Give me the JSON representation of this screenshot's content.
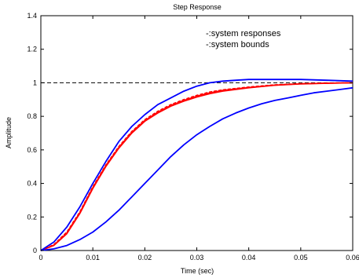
{
  "chart_data": {
    "type": "line",
    "title": "Step Response",
    "xlabel": "Time (sec)",
    "ylabel": "Amplitude",
    "xlim": [
      0,
      0.06
    ],
    "ylim": [
      0,
      1.4
    ],
    "xticks": [
      0,
      0.01,
      0.02,
      0.03,
      0.04,
      0.05,
      0.06
    ],
    "xtick_labels": [
      "0",
      "0.01",
      "0.02",
      "0.03",
      "0.04",
      "0.05",
      "0.06"
    ],
    "yticks": [
      0,
      0.2,
      0.4,
      0.6,
      0.8,
      1.0,
      1.2,
      1.4
    ],
    "ytick_labels": [
      "0",
      "0.2",
      "0.4",
      "0.6",
      "0.8",
      "1",
      "1.2",
      "1.4"
    ],
    "grid": false,
    "legend": {
      "placement": "top-right",
      "entries": [
        "-:system responses",
        "-:system bounds"
      ]
    },
    "reference_line": {
      "y": 1.0,
      "style": "dashed",
      "color": "#000000"
    },
    "series": [
      {
        "color": "#ff0000",
        "style": "solid",
        "x": [
          0,
          0.0025,
          0.005,
          0.0075,
          0.01,
          0.0125,
          0.015,
          0.0175,
          0.02,
          0.0225,
          0.025,
          0.0275,
          0.03,
          0.0325,
          0.035,
          0.04,
          0.045,
          0.05,
          0.055,
          0.06
        ],
        "y": [
          0,
          0.03,
          0.1,
          0.22,
          0.37,
          0.5,
          0.61,
          0.7,
          0.77,
          0.82,
          0.86,
          0.89,
          0.915,
          0.935,
          0.95,
          0.97,
          0.985,
          0.993,
          0.997,
          1.0
        ]
      },
      {
        "color": "#ff0000",
        "style": "dashed",
        "x": [
          0,
          0.0025,
          0.005,
          0.0075,
          0.01,
          0.0125,
          0.015,
          0.0175,
          0.02,
          0.0225,
          0.025,
          0.0275,
          0.03,
          0.0325,
          0.035,
          0.04,
          0.045,
          0.05,
          0.055,
          0.06
        ],
        "y": [
          0,
          0.035,
          0.11,
          0.23,
          0.38,
          0.51,
          0.62,
          0.71,
          0.78,
          0.83,
          0.87,
          0.9,
          0.925,
          0.945,
          0.958,
          0.975,
          0.988,
          0.995,
          0.998,
          1.0
        ]
      },
      {
        "color": "#ff0000",
        "style": "solid",
        "x": [
          0,
          0.0025,
          0.005,
          0.0075,
          0.01,
          0.0125,
          0.015,
          0.0175,
          0.02,
          0.0225,
          0.025,
          0.0275,
          0.03,
          0.0325,
          0.035,
          0.04,
          0.045,
          0.05,
          0.055,
          0.06
        ],
        "y": [
          0,
          0.032,
          0.105,
          0.225,
          0.375,
          0.505,
          0.615,
          0.705,
          0.775,
          0.825,
          0.865,
          0.895,
          0.92,
          0.94,
          0.955,
          0.972,
          0.986,
          0.994,
          0.998,
          1.0
        ]
      },
      {
        "color": "#0000ff",
        "style": "solid",
        "x": [
          0,
          0.0025,
          0.005,
          0.0075,
          0.01,
          0.0125,
          0.015,
          0.0175,
          0.02,
          0.0225,
          0.025,
          0.0275,
          0.03,
          0.0325,
          0.035,
          0.0375,
          0.04,
          0.045,
          0.05,
          0.055,
          0.06
        ],
        "y": [
          0,
          0.05,
          0.14,
          0.26,
          0.4,
          0.53,
          0.65,
          0.74,
          0.81,
          0.87,
          0.91,
          0.95,
          0.98,
          1.0,
          1.01,
          1.015,
          1.02,
          1.02,
          1.02,
          1.015,
          1.01
        ]
      },
      {
        "color": "#0000ff",
        "style": "solid",
        "x": [
          0,
          0.0025,
          0.005,
          0.0075,
          0.01,
          0.0125,
          0.015,
          0.0175,
          0.02,
          0.0225,
          0.025,
          0.0275,
          0.03,
          0.0325,
          0.035,
          0.0375,
          0.04,
          0.0425,
          0.045,
          0.0475,
          0.05,
          0.0525,
          0.055,
          0.0575,
          0.06
        ],
        "y": [
          0,
          0.01,
          0.03,
          0.065,
          0.11,
          0.17,
          0.24,
          0.32,
          0.4,
          0.48,
          0.56,
          0.63,
          0.69,
          0.74,
          0.785,
          0.82,
          0.85,
          0.875,
          0.895,
          0.91,
          0.925,
          0.94,
          0.95,
          0.96,
          0.97
        ]
      }
    ]
  }
}
